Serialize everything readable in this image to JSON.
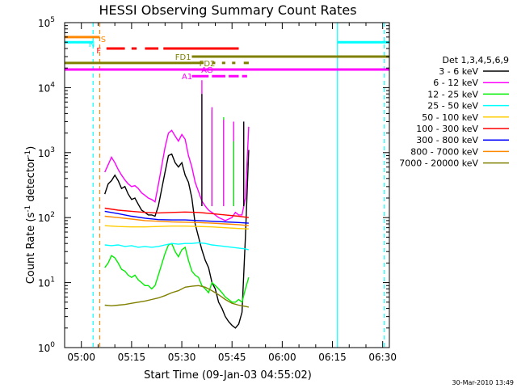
{
  "chart_data": {
    "type": "line",
    "title": "HESSI Observing Summary Count Rates",
    "xlabel": "Start Time (09-Jan-03 04:55:02)",
    "ylabel_main": "Count Rate (s",
    "ylabel_sup1": "-1",
    "ylabel_mid": " detector",
    "ylabel_sup2": "-1",
    "ylabel_end": ")",
    "x_unit": "minutes after 04:55:02",
    "xlim": [
      0,
      97
    ],
    "ylim": [
      1,
      100000
    ],
    "yscale": "log",
    "x_ticks": [
      {
        "x": 5,
        "label": "05:00"
      },
      {
        "x": 20,
        "label": "05:15"
      },
      {
        "x": 35,
        "label": "05:30"
      },
      {
        "x": 50,
        "label": "05:45"
      },
      {
        "x": 65,
        "label": "06:00"
      },
      {
        "x": 80,
        "label": "06:15"
      },
      {
        "x": 95,
        "label": "06:30"
      }
    ],
    "y_ticks": [
      {
        "value": 1,
        "base": "10",
        "exp": "0"
      },
      {
        "value": 10,
        "base": "10",
        "exp": "1"
      },
      {
        "value": 100,
        "base": "10",
        "exp": "2"
      },
      {
        "value": 1000,
        "base": "10",
        "exp": "3"
      },
      {
        "value": 10000,
        "base": "10",
        "exp": "4"
      },
      {
        "value": 100000,
        "base": "10",
        "exp": "5"
      }
    ],
    "legend": {
      "placement": "right",
      "title": "Det 1,3,4,5,6,9",
      "entries": [
        {
          "label": "3 - 6 keV",
          "color": "#000000"
        },
        {
          "label": "6 - 12 keV",
          "color": "#ff00ff"
        },
        {
          "label": "12 - 25 keV",
          "color": "#00ee00"
        },
        {
          "label": "25 - 50 keV",
          "color": "#00ffff"
        },
        {
          "label": "50 - 100 keV",
          "color": "#ffcc00"
        },
        {
          "label": "100 - 300 keV",
          "color": "#ff0000"
        },
        {
          "label": "300 - 800 keV",
          "color": "#0000ff"
        },
        {
          "label": "800 - 7000 keV",
          "color": "#ff8800"
        },
        {
          "label": "7000 - 20000 keV",
          "color": "#808000"
        }
      ]
    },
    "flags": [
      {
        "label": "S",
        "color": "#ff8800",
        "value": 60000,
        "segments": [
          [
            0,
            10.5
          ]
        ]
      },
      {
        "label": "N",
        "color": "#00ffff",
        "value": 50000,
        "segments": [
          [
            0,
            8.5
          ],
          [
            81.5,
            97
          ]
        ]
      },
      {
        "label": "F",
        "color": "#ff0000",
        "value": 40000,
        "segments": [
          [
            12.5,
            18
          ],
          [
            20,
            21.5
          ],
          [
            24,
            28
          ],
          [
            29.5,
            52
          ]
        ]
      },
      {
        "label": "FD1",
        "color": "#808000",
        "value": 30000,
        "segments": [
          [
            38,
            97
          ]
        ]
      },
      {
        "label": "FD2",
        "color": "#808000",
        "value": 24000,
        "segments": [
          [
            0,
            38
          ],
          [
            38,
            41.5
          ],
          [
            44,
            45
          ],
          [
            47,
            48
          ],
          [
            50,
            51
          ],
          [
            53.5,
            55
          ]
        ]
      },
      {
        "label": "AG",
        "color": "#ff00ff",
        "value": 19000,
        "segments": [
          [
            0,
            97
          ]
        ]
      },
      {
        "label": "A1",
        "color": "#ff00ff",
        "value": 15000,
        "segments": [
          [
            38,
            43
          ],
          [
            44,
            48
          ],
          [
            49,
            52
          ],
          [
            53,
            54.5
          ]
        ]
      }
    ],
    "vertical_lines": [
      {
        "x": 8.5,
        "color": "#00ffff",
        "style": "dashed"
      },
      {
        "x": 10.5,
        "color": "#ff8800",
        "style": "dashed"
      },
      {
        "x": 81.5,
        "color": "#00ffff",
        "style": "solid"
      },
      {
        "x": 95.5,
        "color": "#00ffff",
        "style": "dashed"
      }
    ],
    "series": [
      {
        "name": "3 - 6 keV",
        "color": "#000000",
        "x": [
          12,
          13,
          14,
          15,
          16,
          17,
          18,
          19,
          20,
          21,
          22,
          23,
          24,
          25,
          26,
          27,
          28,
          30,
          31,
          32,
          33,
          34,
          35,
          36,
          37,
          38,
          39,
          40,
          41,
          42,
          43,
          44,
          45,
          46,
          47,
          48,
          49,
          50,
          51,
          52,
          53,
          54,
          55
        ],
        "y": [
          230,
          330,
          370,
          450,
          370,
          280,
          300,
          230,
          190,
          200,
          160,
          130,
          120,
          110,
          110,
          105,
          150,
          500,
          900,
          950,
          700,
          600,
          700,
          450,
          350,
          200,
          80,
          50,
          32,
          22,
          17,
          10,
          8,
          5,
          4,
          3,
          2.5,
          2.2,
          2,
          2.3,
          3.5,
          50,
          1100
        ]
      },
      {
        "name": "6 - 12 keV",
        "color": "#ff00ff",
        "x": [
          12,
          13,
          14,
          15,
          16,
          17,
          18,
          19,
          20,
          21,
          22,
          23,
          24,
          25,
          26,
          27,
          28,
          30,
          31,
          32,
          33,
          34,
          35,
          36,
          37,
          38,
          39,
          40,
          41,
          42,
          43,
          44,
          45,
          46,
          47,
          48,
          49,
          50,
          51,
          52,
          53,
          54,
          55
        ],
        "y": [
          500,
          650,
          850,
          700,
          550,
          450,
          380,
          330,
          300,
          310,
          280,
          240,
          220,
          200,
          190,
          175,
          320,
          1200,
          2000,
          2200,
          1800,
          1500,
          1900,
          1600,
          900,
          600,
          350,
          250,
          180,
          150,
          130,
          120,
          110,
          100,
          95,
          90,
          95,
          100,
          120,
          110,
          110,
          200,
          2500
        ]
      },
      {
        "name": "12 - 25 keV",
        "color": "#00ee00",
        "x": [
          12,
          13,
          14,
          15,
          16,
          17,
          18,
          19,
          20,
          21,
          22,
          23,
          24,
          25,
          26,
          27,
          28,
          30,
          31,
          32,
          33,
          34,
          35,
          36,
          37,
          38,
          39,
          40,
          41,
          42,
          43,
          44,
          45,
          46,
          47,
          48,
          49,
          50,
          51,
          52,
          53,
          54,
          55
        ],
        "y": [
          17,
          20,
          26,
          24,
          20,
          16,
          15,
          13,
          12,
          13,
          11,
          10,
          9,
          9,
          8,
          9,
          13,
          28,
          38,
          40,
          30,
          25,
          32,
          35,
          22,
          15,
          13,
          12,
          9,
          8,
          7,
          10,
          9,
          8,
          7,
          6,
          5.5,
          5,
          5,
          5.5,
          5,
          8,
          12
        ]
      },
      {
        "name": "25 - 50 keV",
        "color": "#00ffff",
        "x": [
          12,
          14,
          16,
          18,
          20,
          22,
          24,
          26,
          28,
          30,
          32,
          34,
          36,
          38,
          40,
          42,
          44,
          46,
          48,
          50,
          52,
          54,
          55
        ],
        "y": [
          38,
          37,
          38,
          36,
          37,
          35,
          36,
          35,
          36,
          38,
          40,
          39,
          40,
          40,
          41,
          40,
          38,
          37,
          36,
          35,
          34,
          33,
          32
        ]
      },
      {
        "name": "50 - 100 keV",
        "color": "#ffcc00",
        "x": [
          12,
          16,
          20,
          24,
          28,
          32,
          36,
          40,
          44,
          48,
          52,
          55
        ],
        "y": [
          75,
          73,
          72,
          72,
          73,
          74,
          74,
          73,
          72,
          70,
          68,
          67
        ]
      },
      {
        "name": "100 - 300 keV",
        "color": "#ff0000",
        "x": [
          12,
          16,
          20,
          24,
          28,
          32,
          36,
          40,
          44,
          48,
          52,
          55
        ],
        "y": [
          140,
          130,
          125,
          120,
          118,
          120,
          122,
          120,
          115,
          110,
          105,
          100
        ]
      },
      {
        "name": "300 - 800 keV",
        "color": "#0000ff",
        "x": [
          12,
          16,
          20,
          24,
          28,
          32,
          36,
          40,
          44,
          48,
          52,
          55
        ],
        "y": [
          125,
          115,
          105,
          98,
          93,
          92,
          92,
          90,
          88,
          86,
          84,
          82
        ]
      },
      {
        "name": "800 - 7000 keV",
        "color": "#ff8800",
        "x": [
          12,
          16,
          20,
          24,
          28,
          32,
          36,
          40,
          44,
          48,
          52,
          55
        ],
        "y": [
          105,
          100,
          95,
          90,
          88,
          86,
          85,
          84,
          82,
          80,
          78,
          75
        ]
      },
      {
        "name": "7000 - 20000 keV",
        "color": "#808000",
        "x": [
          12,
          14,
          16,
          18,
          20,
          22,
          24,
          26,
          28,
          30,
          32,
          34,
          36,
          38,
          40,
          42,
          44,
          46,
          48,
          50,
          52,
          54,
          55
        ],
        "y": [
          4.5,
          4.4,
          4.5,
          4.6,
          4.8,
          5.0,
          5.2,
          5.5,
          5.8,
          6.3,
          7.0,
          7.5,
          8.5,
          8.8,
          9.0,
          8.5,
          7.5,
          6.5,
          5.5,
          4.8,
          4.5,
          4.3,
          4.2
        ]
      }
    ],
    "spikes": [
      {
        "x": 41,
        "y": 13000,
        "color": "#ff00ff"
      },
      {
        "x": 41,
        "y": 8000,
        "color": "#000000"
      },
      {
        "x": 44,
        "y": 4500,
        "color": "#00ee00"
      },
      {
        "x": 44,
        "y": 5000,
        "color": "#ff00ff"
      },
      {
        "x": 47.5,
        "y": 3500,
        "color": "#00ee00"
      },
      {
        "x": 47.5,
        "y": 3200,
        "color": "#ff00ff"
      },
      {
        "x": 50.5,
        "y": 3000,
        "color": "#ff00ff"
      },
      {
        "x": 50.5,
        "y": 1500,
        "color": "#00ee00"
      },
      {
        "x": 53.5,
        "y": 3000,
        "color": "#ff00ff"
      },
      {
        "x": 53.5,
        "y": 3000,
        "color": "#000000"
      }
    ],
    "date_stamp": "30-Mar-2010 13:49"
  }
}
